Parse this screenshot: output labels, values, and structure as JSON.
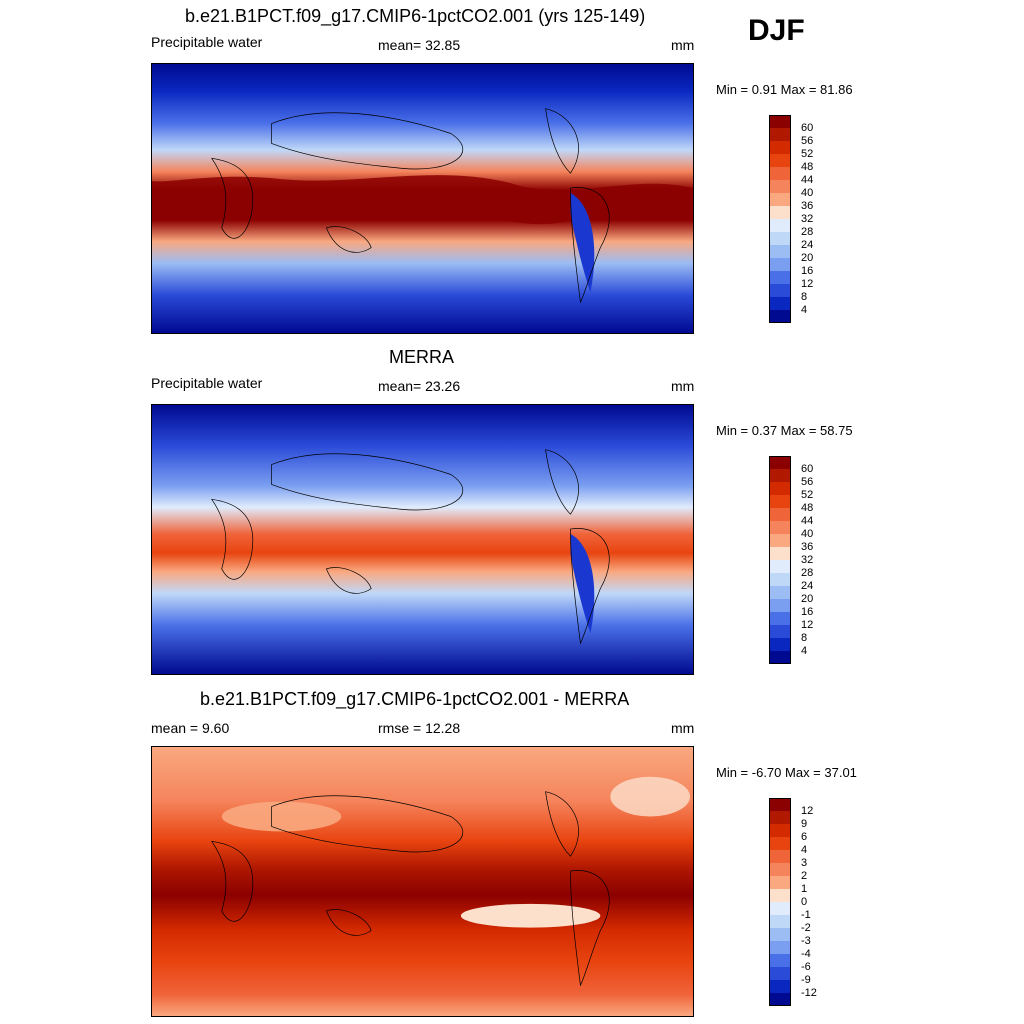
{
  "season": "DJF",
  "panels": [
    {
      "title": "b.e21.B1PCT.f09_g17.CMIP6-1pctCO2.001 (yrs 125-149)",
      "left_label": "Precipitable water",
      "center_label": "mean=  32.85",
      "right_label": "mm",
      "minmax": "Min =   0.91 Max =  81.86"
    },
    {
      "title": "MERRA",
      "left_label": "Precipitable water",
      "center_label": "mean=  23.26",
      "right_label": "mm",
      "minmax": "Min =   0.37 Max =  58.75"
    },
    {
      "title": "b.e21.B1PCT.f09_g17.CMIP6-1pctCO2.001 - MERRA",
      "left_label": "mean =   9.60",
      "center_label": "rmse =  12.28",
      "right_label": "mm",
      "minmax": "Min =  -6.70 Max =  37.01"
    }
  ],
  "colorbar_abs": {
    "ticks": [
      "60",
      "56",
      "52",
      "48",
      "44",
      "40",
      "36",
      "32",
      "28",
      "24",
      "20",
      "16",
      "12",
      "8",
      "4"
    ],
    "colors": [
      "#8b0000",
      "#b01800",
      "#d42a00",
      "#e84410",
      "#f0643a",
      "#f5845c",
      "#f9a880",
      "#fde0cc",
      "#e0ecfc",
      "#c0d8f8",
      "#9cbcf4",
      "#7a9ef0",
      "#4a70e8",
      "#2a4ad8",
      "#0a28c0",
      "#000a90"
    ]
  },
  "colorbar_diff": {
    "ticks": [
      "12",
      "9",
      "6",
      "4",
      "3",
      "2",
      "1",
      "0",
      "-1",
      "-2",
      "-3",
      "-4",
      "-6",
      "-9",
      "-12"
    ],
    "colors": [
      "#8b0000",
      "#b01800",
      "#d42a00",
      "#e84410",
      "#f0643a",
      "#f5845c",
      "#f9a880",
      "#fde0cc",
      "#e0ecfc",
      "#c0d8f8",
      "#9cbcf4",
      "#7a9ef0",
      "#4a70e8",
      "#2a4ad8",
      "#0a28c0",
      "#000a90"
    ]
  }
}
